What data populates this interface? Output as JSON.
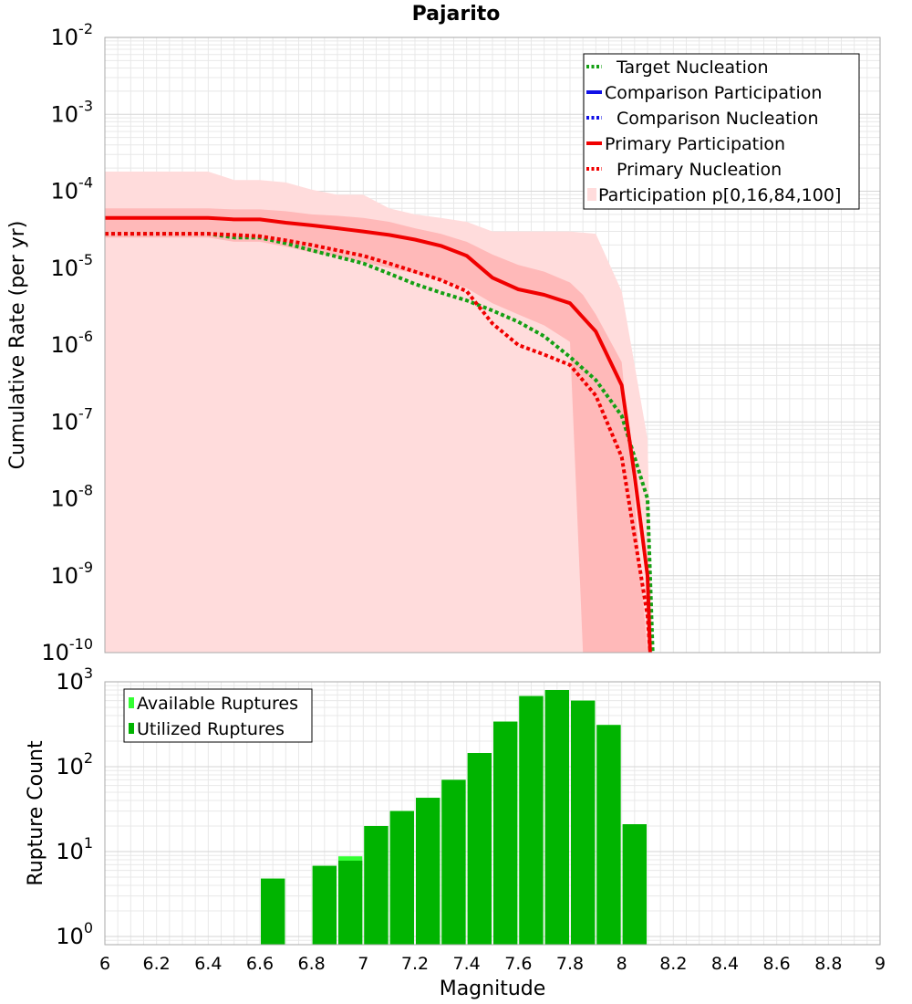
{
  "title": "Pajarito",
  "colors": {
    "target": "#14a014",
    "comparison": "#1010e6",
    "primary": "#f00000",
    "band_outer": "#ffdcdc",
    "band_inner": "#ffb9b9",
    "bar_available": "#33ff33",
    "bar_utilized": "#00b400",
    "grid": "#e8e8e8"
  },
  "chart_data": [
    {
      "type": "line",
      "title": "Pajarito",
      "xlabel": "",
      "ylabel": "Cumulative Rate (per yr)",
      "xlim": [
        6,
        9
      ],
      "ylim": [
        1e-10,
        0.01
      ],
      "yscale": "log",
      "ytick_labels": [
        {
          "base": "10",
          "exp": "-2",
          "value": 0.01
        },
        {
          "base": "10",
          "exp": "-3",
          "value": 0.001
        },
        {
          "base": "10",
          "exp": "-4",
          "value": 0.0001
        },
        {
          "base": "10",
          "exp": "-5",
          "value": 1e-05
        },
        {
          "base": "10",
          "exp": "-6",
          "value": 1e-06
        },
        {
          "base": "10",
          "exp": "-7",
          "value": 1e-07
        },
        {
          "base": "10",
          "exp": "-8",
          "value": 1e-08
        },
        {
          "base": "10",
          "exp": "-9",
          "value": 1e-09
        },
        {
          "base": "10",
          "exp": "-10",
          "value": 1e-10
        }
      ],
      "legend": [
        {
          "label": "Target Nucleation",
          "style": "dotted",
          "color_key": "target"
        },
        {
          "label": "Comparison Participation",
          "style": "solid",
          "color_key": "comparison"
        },
        {
          "label": "Comparison Nucleation",
          "style": "dotted",
          "color_key": "comparison"
        },
        {
          "label": "Primary Participation",
          "style": "solid",
          "color_key": "primary"
        },
        {
          "label": "Primary Nucleation",
          "style": "dotted",
          "color_key": "primary"
        },
        {
          "label": "Participation p[0,16,84,100]",
          "style": "patch",
          "color_key": "band_outer"
        }
      ],
      "legend_position": "top-right",
      "series": [
        {
          "name": "Target Nucleation",
          "style": "dotted",
          "color_key": "target",
          "x": [
            6.0,
            6.1,
            6.2,
            6.3,
            6.4,
            6.5,
            6.6,
            6.7,
            6.8,
            6.9,
            7.0,
            7.1,
            7.2,
            7.3,
            7.4,
            7.5,
            7.6,
            7.7,
            7.8,
            7.9,
            8.0,
            8.1,
            8.12
          ],
          "y": [
            2.8e-05,
            2.8e-05,
            2.8e-05,
            2.8e-05,
            2.8e-05,
            2.5e-05,
            2.5e-05,
            2.1e-05,
            1.7e-05,
            1.4e-05,
            1.15e-05,
            8.5e-06,
            6.2e-06,
            4.8e-06,
            3.8e-06,
            2.8e-06,
            2e-06,
            1.3e-06,
            7e-07,
            3.5e-07,
            1.2e-07,
            1e-08,
            1e-10
          ]
        },
        {
          "name": "Primary Participation",
          "style": "solid",
          "color_key": "primary",
          "x": [
            6.0,
            6.1,
            6.2,
            6.3,
            6.4,
            6.5,
            6.6,
            6.7,
            6.8,
            6.9,
            7.0,
            7.1,
            7.2,
            7.3,
            7.4,
            7.5,
            7.6,
            7.7,
            7.8,
            7.9,
            8.0,
            8.05,
            8.1,
            8.11
          ],
          "y": [
            4.5e-05,
            4.5e-05,
            4.5e-05,
            4.5e-05,
            4.5e-05,
            4.3e-05,
            4.3e-05,
            3.9e-05,
            3.6e-05,
            3.3e-05,
            3e-05,
            2.7e-05,
            2.35e-05,
            1.95e-05,
            1.45e-05,
            7.5e-06,
            5.3e-06,
            4.5e-06,
            3.5e-06,
            1.5e-06,
            3e-07,
            2e-08,
            1e-09,
            1e-10
          ]
        },
        {
          "name": "Primary Nucleation",
          "style": "dotted",
          "color_key": "primary",
          "x": [
            6.0,
            6.1,
            6.2,
            6.3,
            6.4,
            6.5,
            6.6,
            6.7,
            6.8,
            6.9,
            7.0,
            7.1,
            7.2,
            7.3,
            7.4,
            7.5,
            7.6,
            7.7,
            7.8,
            7.9,
            8.0,
            8.1,
            8.11
          ],
          "y": [
            2.8e-05,
            2.8e-05,
            2.8e-05,
            2.8e-05,
            2.8e-05,
            2.7e-05,
            2.6e-05,
            2.3e-05,
            2e-05,
            1.7e-05,
            1.45e-05,
            1.15e-05,
            9e-06,
            7e-06,
            5e-06,
            1.9e-06,
            1e-06,
            7.5e-07,
            5.5e-07,
            2.2e-07,
            3.5e-08,
            3e-10,
            1e-10
          ]
        }
      ],
      "bands": [
        {
          "name": "p0-p100",
          "color_key": "band_outer",
          "x": [
            6.0,
            6.1,
            6.2,
            6.3,
            6.4,
            6.5,
            6.6,
            6.7,
            6.8,
            6.9,
            7.0,
            7.1,
            7.2,
            7.3,
            7.4,
            7.5,
            7.6,
            7.7,
            7.8,
            7.9,
            8.0,
            8.1,
            8.12
          ],
          "lower": [
            1e-10,
            1e-10,
            1e-10,
            1e-10,
            1e-10,
            1e-10,
            1e-10,
            1e-10,
            1e-10,
            1e-10,
            1e-10,
            1e-10,
            1e-10,
            1e-10,
            1e-10,
            1e-10,
            1e-10,
            1e-10,
            1e-10,
            1e-10,
            1e-10,
            1e-10,
            1e-10
          ],
          "upper": [
            0.00018,
            0.00018,
            0.00018,
            0.00018,
            0.00018,
            0.00014,
            0.00014,
            0.00013,
            0.000105,
            9e-05,
            9e-05,
            6e-05,
            5e-05,
            4.5e-05,
            4e-05,
            3e-05,
            3e-05,
            3e-05,
            3e-05,
            2.8e-05,
            5e-06,
            6e-08,
            1e-10
          ]
        },
        {
          "name": "p16-p84",
          "color_key": "band_inner",
          "x": [
            6.0,
            6.1,
            6.2,
            6.3,
            6.4,
            6.5,
            6.6,
            6.7,
            6.8,
            6.9,
            7.0,
            7.1,
            7.2,
            7.3,
            7.4,
            7.5,
            7.6,
            7.7,
            7.8,
            7.85,
            7.9,
            8.0,
            8.05,
            8.1
          ],
          "lower": [
            2.5e-05,
            2.5e-05,
            2.5e-05,
            2.5e-05,
            2.5e-05,
            2.2e-05,
            2.2e-05,
            1.9e-05,
            1.6e-05,
            1.4e-05,
            1.2e-05,
            1e-05,
            8.5e-06,
            7e-06,
            5.5e-06,
            3.5e-06,
            2.5e-06,
            1.8e-06,
            1.1e-06,
            1e-10,
            1e-10,
            1e-10,
            1e-10,
            1e-10
          ],
          "upper": [
            6e-05,
            6e-05,
            6e-05,
            6e-05,
            6e-05,
            5.8e-05,
            5.8e-05,
            5.5e-05,
            5e-05,
            4.8e-05,
            4.5e-05,
            4e-05,
            3.3e-05,
            2.8e-05,
            2.2e-05,
            1.5e-05,
            1.1e-05,
            9e-06,
            6.5e-06,
            4.5e-06,
            2.5e-06,
            6e-07,
            1e-08,
            1e-10
          ]
        }
      ]
    },
    {
      "type": "bar",
      "title": "",
      "xlabel": "Magnitude",
      "ylabel": "Rupture Count",
      "xlim": [
        6,
        9
      ],
      "ylim": [
        0.8,
        1000
      ],
      "yscale": "log",
      "ytick_labels": [
        {
          "base": "10",
          "exp": "3",
          "value": 1000
        },
        {
          "base": "10",
          "exp": "2",
          "value": 100
        },
        {
          "base": "10",
          "exp": "1",
          "value": 10
        },
        {
          "base": "10",
          "exp": "0",
          "value": 1
        }
      ],
      "xtick_labels": [
        "6",
        "6.2",
        "6.4",
        "6.6",
        "6.8",
        "7",
        "7.2",
        "7.4",
        "7.6",
        "7.8",
        "8",
        "8.2",
        "8.4",
        "8.6",
        "8.8",
        "9"
      ],
      "legend": [
        {
          "label": "Available Ruptures",
          "color_key": "bar_available"
        },
        {
          "label": "Utilized Ruptures",
          "color_key": "bar_utilized"
        }
      ],
      "legend_position": "top-left",
      "bin_width": 0.1,
      "categories": [
        6.65,
        6.85,
        6.95,
        7.05,
        7.15,
        7.25,
        7.35,
        7.45,
        7.55,
        7.65,
        7.75,
        7.85,
        7.95,
        8.05
      ],
      "series": [
        {
          "name": "Available Ruptures",
          "color_key": "bar_available",
          "values": [
            4.8,
            6.8,
            8.8,
            20,
            30,
            43,
            70,
            145,
            340,
            680,
            800,
            600,
            310,
            21
          ]
        },
        {
          "name": "Utilized Ruptures",
          "color_key": "bar_utilized",
          "values": [
            4.8,
            6.8,
            7.8,
            20,
            30,
            43,
            70,
            145,
            340,
            680,
            800,
            600,
            310,
            21
          ]
        }
      ]
    }
  ]
}
